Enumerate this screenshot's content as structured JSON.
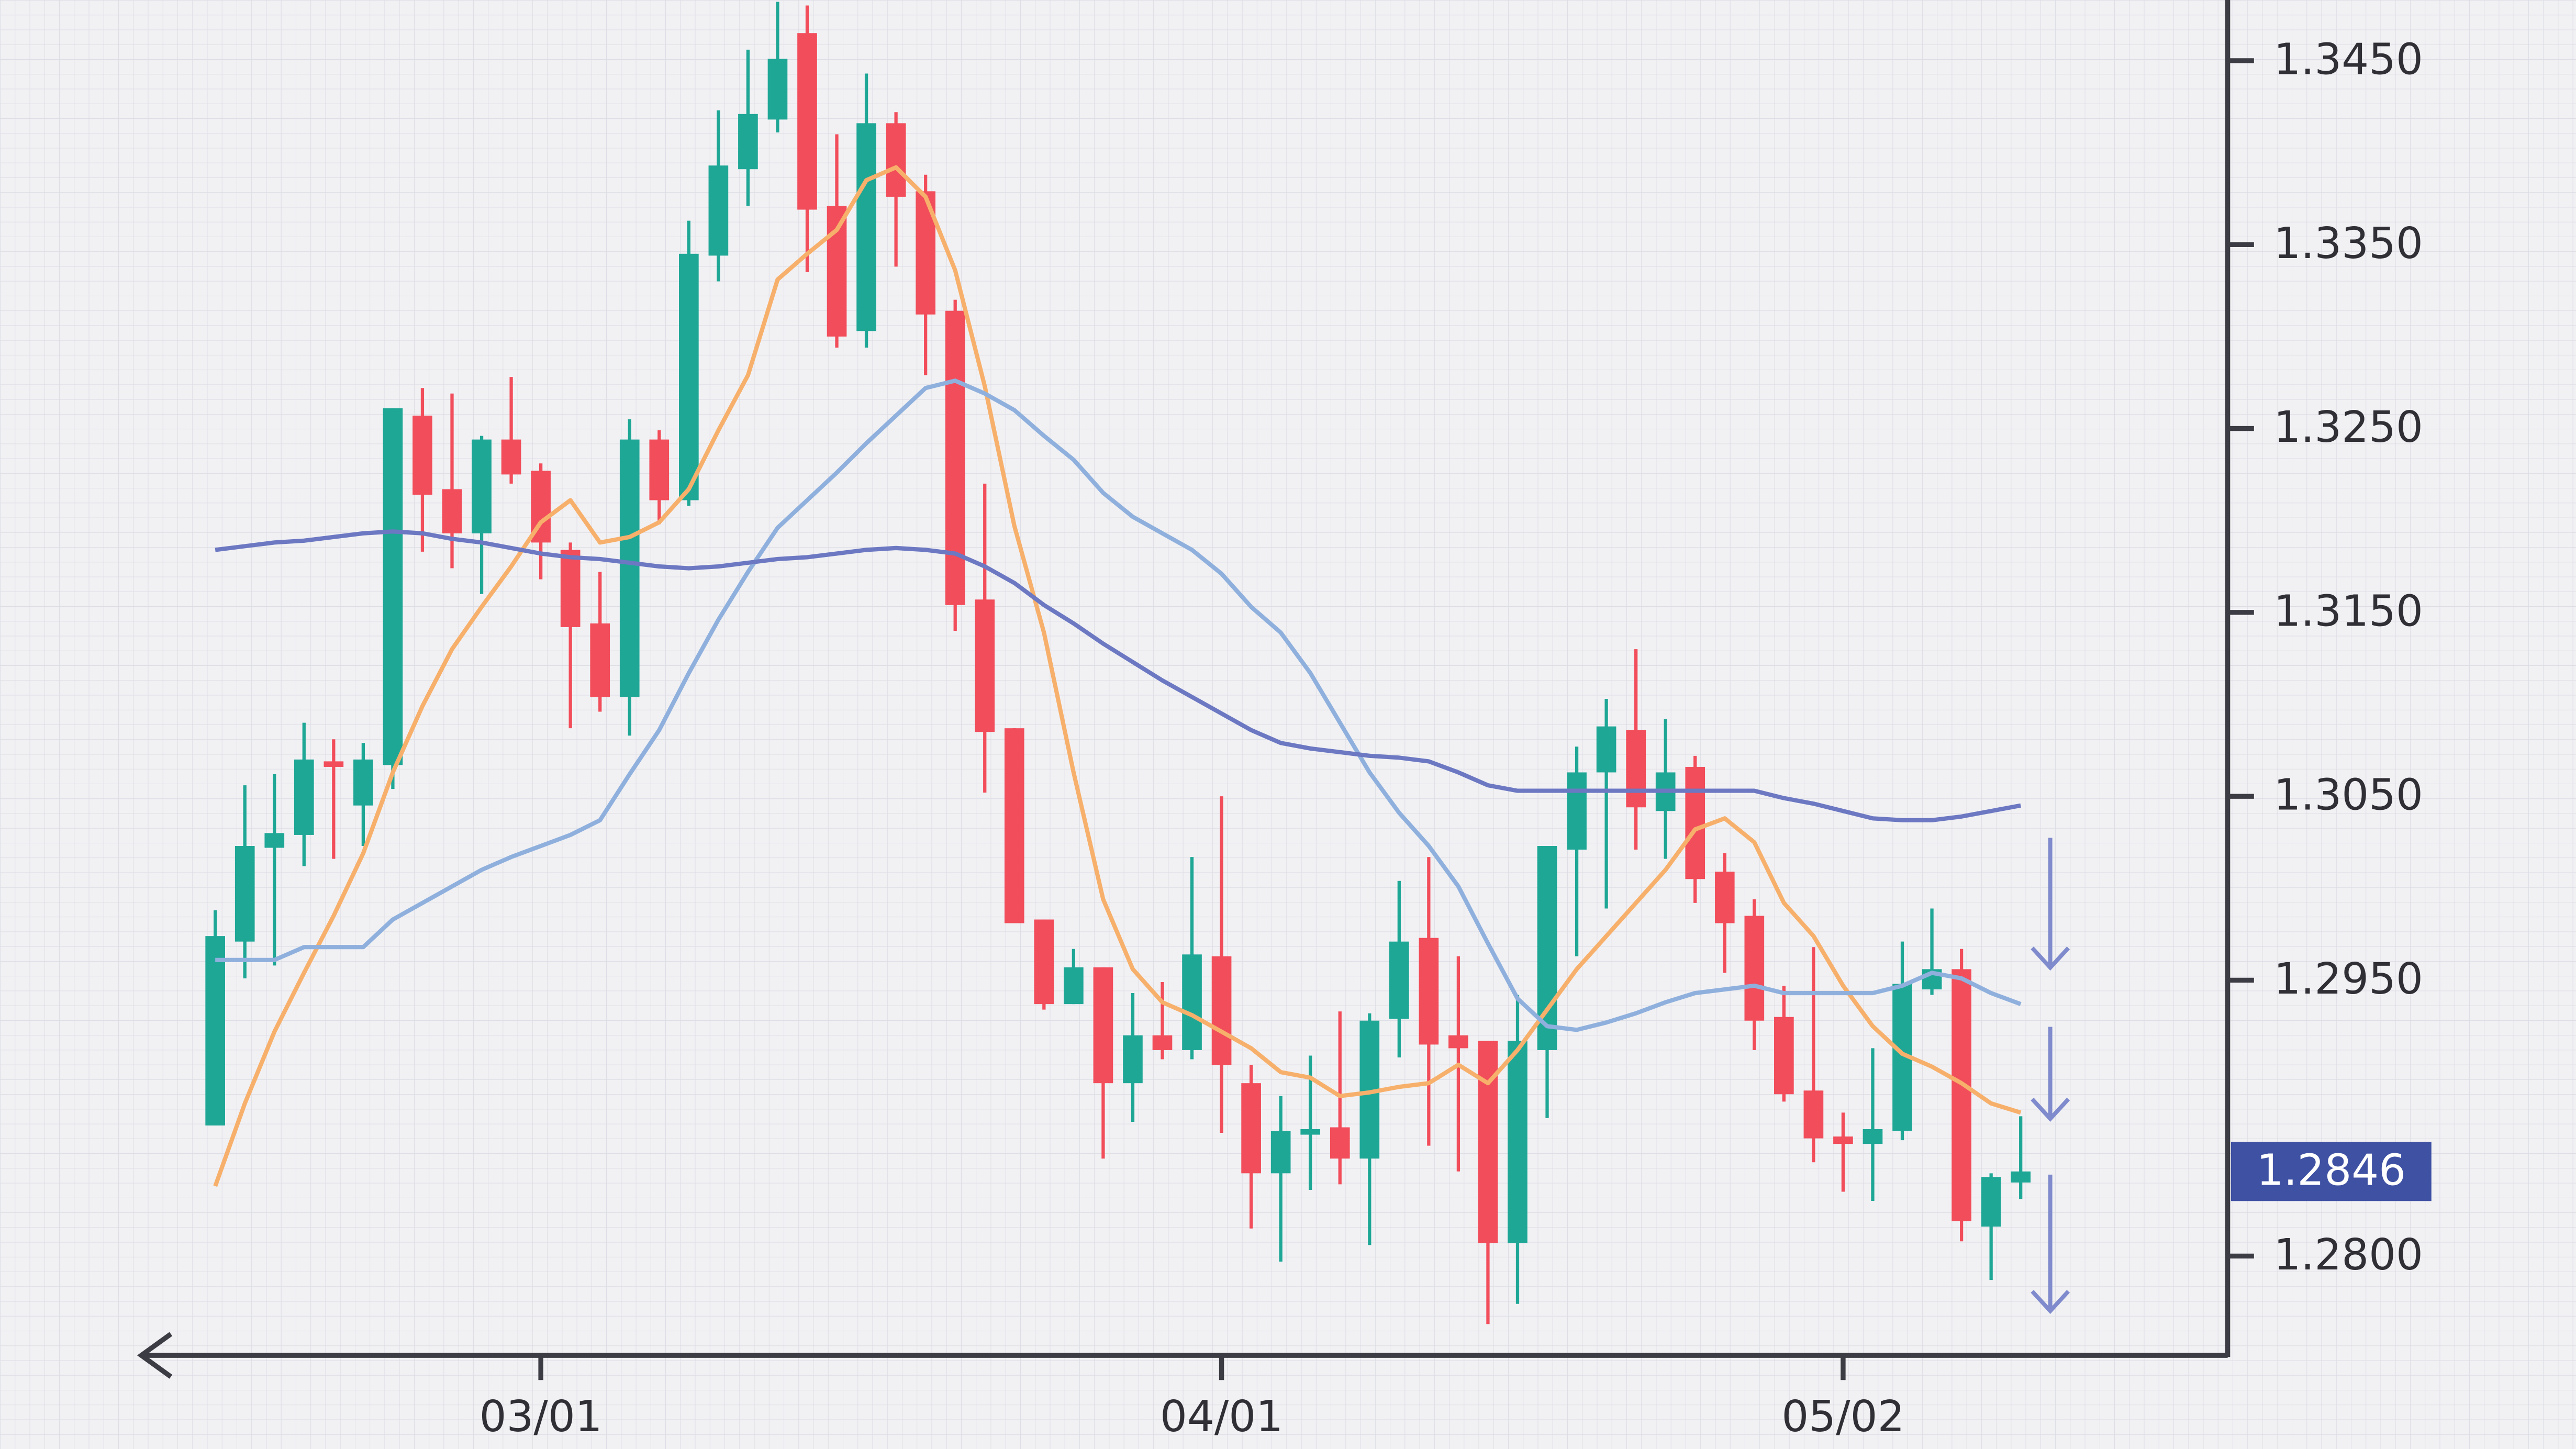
{
  "chart_data": {
    "type": "candlestick",
    "categories": [
      null,
      null,
      null,
      null,
      null,
      null,
      null,
      null,
      null,
      null,
      null,
      "03/01",
      null,
      null,
      null,
      null,
      null,
      null,
      null,
      null,
      null,
      null,
      null,
      null,
      null,
      null,
      null,
      null,
      null,
      null,
      null,
      null,
      null,
      null,
      "04/01",
      null,
      null,
      null,
      null,
      null,
      null,
      null,
      null,
      null,
      null,
      null,
      null,
      null,
      null,
      null,
      null,
      null,
      null,
      null,
      null,
      "05/02",
      null,
      null,
      null,
      null,
      null,
      null
    ],
    "open": [
      1.2871,
      1.2971,
      1.3022,
      1.3029,
      1.3069,
      1.3045,
      1.3067,
      1.3257,
      1.3217,
      1.3193,
      1.3244,
      1.3227,
      1.3184,
      1.3144,
      1.3104,
      1.3244,
      1.3211,
      1.3344,
      1.3391,
      1.3418,
      1.3465,
      1.3371,
      1.3303,
      1.3416,
      1.3379,
      1.3314,
      1.3157,
      1.3087,
      1.2983,
      1.2937,
      1.2957,
      1.2894,
      1.292,
      1.2912,
      1.2963,
      1.2894,
      1.2845,
      1.2866,
      1.287,
      1.2853,
      1.2929,
      1.2973,
      1.292,
      1.2917,
      1.2807,
      1.2912,
      1.3021,
      1.3063,
      1.3086,
      1.3042,
      1.3066,
      1.3009,
      1.2985,
      1.293,
      1.289,
      1.2865,
      1.2861,
      1.2868,
      1.2945,
      1.2956,
      1.2816,
      1.284
    ],
    "high": [
      1.2988,
      1.3056,
      1.3062,
      1.309,
      1.3081,
      1.3079,
      1.3261,
      1.3272,
      1.3269,
      1.3246,
      1.3278,
      1.3231,
      1.3188,
      1.3172,
      1.3255,
      1.3249,
      1.3363,
      1.3423,
      1.3456,
      1.3482,
      1.348,
      1.341,
      1.3443,
      1.3422,
      1.3388,
      1.332,
      1.322,
      1.3087,
      1.2983,
      1.2967,
      1.2957,
      1.2943,
      1.2949,
      1.3017,
      1.305,
      1.2904,
      1.2887,
      1.2909,
      1.2933,
      1.2932,
      1.3004,
      1.3017,
      1.2963,
      1.2917,
      1.2942,
      1.3023,
      1.3077,
      1.3103,
      1.313,
      1.3092,
      1.3072,
      1.3019,
      1.2994,
      1.2947,
      1.2968,
      1.2878,
      1.2913,
      1.2971,
      1.2989,
      1.2967,
      1.2845,
      1.2876
    ],
    "low": [
      1.2871,
      1.2951,
      1.2958,
      1.3012,
      1.3016,
      1.3023,
      1.3054,
      1.3183,
      1.3174,
      1.316,
      1.322,
      1.3168,
      1.3087,
      1.3096,
      1.3083,
      1.3198,
      1.3208,
      1.333,
      1.3371,
      1.3411,
      1.3335,
      1.3294,
      1.3294,
      1.3338,
      1.3279,
      1.314,
      1.3052,
      1.2981,
      1.2934,
      1.2937,
      1.2853,
      1.2873,
      1.2907,
      1.2907,
      1.2867,
      1.2815,
      1.2797,
      1.2836,
      1.2839,
      1.2806,
      1.2908,
      1.286,
      1.2846,
      1.2763,
      1.2774,
      1.2875,
      1.2963,
      1.2989,
      1.3021,
      1.3016,
      1.2992,
      1.2954,
      1.2912,
      1.2884,
      1.2851,
      1.2835,
      1.283,
      1.2863,
      1.2942,
      1.2808,
      1.2787,
      1.2831
    ],
    "close": [
      1.2974,
      1.3023,
      1.303,
      1.307,
      1.3066,
      1.307,
      1.3261,
      1.3214,
      1.3193,
      1.3244,
      1.3225,
      1.3188,
      1.3142,
      1.3104,
      1.3244,
      1.3211,
      1.3345,
      1.3393,
      1.3421,
      1.3451,
      1.3369,
      1.33,
      1.3416,
      1.3376,
      1.3312,
      1.3154,
      1.3085,
      1.2981,
      1.2937,
      1.2957,
      1.2894,
      1.292,
      1.2912,
      1.2964,
      1.2904,
      1.2845,
      1.2868,
      1.2869,
      1.2853,
      1.2928,
      1.2971,
      1.2915,
      1.2913,
      1.2807,
      1.2917,
      1.3023,
      1.3063,
      1.3088,
      1.3044,
      1.3063,
      1.3005,
      1.2981,
      1.2928,
      1.2888,
      1.2864,
      1.2861,
      1.2869,
      1.2948,
      1.2956,
      1.2819,
      1.2843,
      1.2846
    ],
    "up_color": "#1fa796",
    "down_color": "#f24d5a",
    "lines": [
      {
        "color": "#f7b06b",
        "values": [
          1.2838,
          1.2883,
          1.2922,
          1.2954,
          1.2985,
          1.3019,
          1.3063,
          1.3099,
          1.313,
          1.3153,
          1.3175,
          1.3199,
          1.3211,
          1.3188,
          1.3191,
          1.3199,
          1.3217,
          1.3249,
          1.3279,
          1.3331,
          1.3345,
          1.3358,
          1.3385,
          1.3392,
          1.3376,
          1.3336,
          1.3273,
          1.3197,
          1.3139,
          1.3063,
          1.2994,
          1.2956,
          1.2938,
          1.2931,
          1.2922,
          1.2913,
          1.29,
          1.2897,
          1.2887,
          1.2889,
          1.2892,
          1.2894,
          1.2904,
          1.2894,
          1.2912,
          1.2934,
          1.2956,
          1.2974,
          1.2992,
          1.301,
          1.3032,
          1.3038,
          1.3025,
          1.2992,
          1.2974,
          1.2947,
          1.2925,
          1.291,
          1.2903,
          1.2894,
          1.2883,
          1.2878
        ]
      },
      {
        "color": "#8fb0dd",
        "values": [
          1.2961,
          1.2961,
          1.2961,
          1.2968,
          1.2968,
          1.2968,
          1.2983,
          1.2992,
          1.3001,
          1.301,
          1.3017,
          1.3023,
          1.3029,
          1.3037,
          1.3062,
          1.3086,
          1.3117,
          1.3146,
          1.3172,
          1.3196,
          1.3211,
          1.3226,
          1.3242,
          1.3257,
          1.3272,
          1.3276,
          1.3269,
          1.326,
          1.3246,
          1.3233,
          1.3215,
          1.3202,
          1.3193,
          1.3184,
          1.3171,
          1.3153,
          1.3139,
          1.3117,
          1.309,
          1.3063,
          1.3041,
          1.3023,
          1.3001,
          1.297,
          1.294,
          1.2925,
          1.2923,
          1.2927,
          1.2932,
          1.2938,
          1.2943,
          1.2945,
          1.2947,
          1.2943,
          1.2943,
          1.2943,
          1.2943,
          1.2947,
          1.2954,
          1.2951,
          1.2943,
          1.2937
        ]
      },
      {
        "color": "#6c78c2",
        "values": [
          1.3184,
          1.3186,
          1.3188,
          1.3189,
          1.3191,
          1.3193,
          1.3194,
          1.3193,
          1.319,
          1.3188,
          1.3185,
          1.3182,
          1.318,
          1.3179,
          1.3177,
          1.3175,
          1.3174,
          1.3175,
          1.3177,
          1.3179,
          1.318,
          1.3182,
          1.3184,
          1.3185,
          1.3184,
          1.3182,
          1.3175,
          1.3166,
          1.3154,
          1.3144,
          1.3133,
          1.3123,
          1.3113,
          1.3104,
          1.3095,
          1.3086,
          1.3079,
          1.3076,
          1.3074,
          1.3072,
          1.3071,
          1.3069,
          1.3063,
          1.3056,
          1.3053,
          1.3053,
          1.3053,
          1.3053,
          1.3053,
          1.3053,
          1.3053,
          1.3053,
          1.3053,
          1.3049,
          1.3046,
          1.3042,
          1.3038,
          1.3037,
          1.3037,
          1.3039,
          1.3042,
          1.3045
        ]
      }
    ],
    "last_price": 1.2846,
    "last_price_color": "#3f51a3",
    "ylim": [
      1.2746,
      1.3483
    ],
    "yticks": [
      {
        "value": 1.28,
        "label": "1.2800"
      },
      {
        "value": 1.295,
        "label": "1.2950"
      },
      {
        "value": 1.305,
        "label": "1.3050"
      },
      {
        "value": 1.315,
        "label": "1.3150"
      },
      {
        "value": 1.325,
        "label": "1.3250"
      },
      {
        "value": 1.335,
        "label": "1.3350"
      },
      {
        "value": 1.345,
        "label": "1.3450"
      }
    ]
  }
}
